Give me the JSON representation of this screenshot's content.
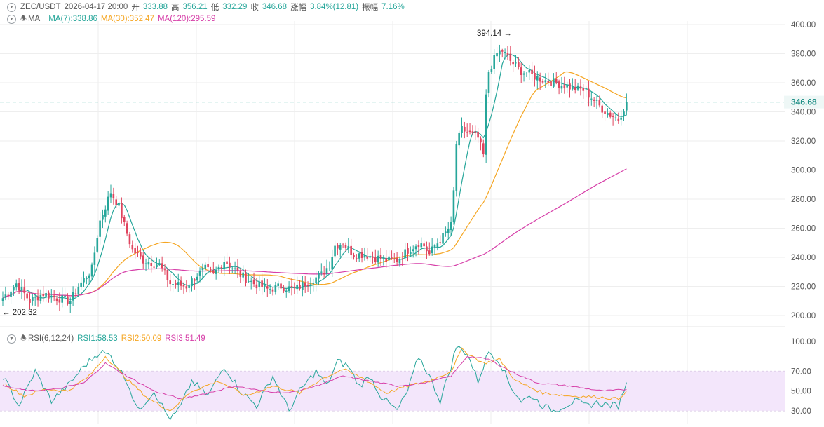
{
  "header": {
    "symbol": "ZEC/USDT",
    "datetime": "2026-04-17 20:00",
    "open_label": "开",
    "open_value": "333.88",
    "high_label": "高",
    "high_value": "356.21",
    "low_label": "低",
    "low_value": "332.29",
    "close_label": "收",
    "close_value": "346.68",
    "change_label": "涨幅",
    "change_value": "3.84%(12.81)",
    "amplitude_label": "振幅",
    "amplitude_value": "7.16%"
  },
  "ma_legend": {
    "title": "MA",
    "ma7": "MA(7):338.86",
    "ma30": "MA(30):352.47",
    "ma120": "MA(120):295.59"
  },
  "rsi_legend": {
    "title": "RSI(6,12,24)",
    "rsi1": "RSI1:58.53",
    "rsi2": "RSI2:50.09",
    "rsi3": "RSI3:51.49"
  },
  "colors": {
    "up": "#26a69a",
    "down": "#e0445e",
    "ma7": "#26a69a",
    "ma30": "#f5a623",
    "ma120": "#d63ea8",
    "rsi_band": "#f3e6fb",
    "grid": "#eeeeee",
    "price_line": "#26a69a"
  },
  "chart_data": [
    {
      "type": "candlestick",
      "y_axis_ticks": [
        "400.00",
        "380.00",
        "360.00",
        "340.00",
        "320.00",
        "300.00",
        "280.00",
        "260.00",
        "240.00",
        "220.00",
        "200.00"
      ],
      "ylim": [
        200,
        400
      ],
      "current_price_label": "346.68",
      "current_price": 346.68,
      "high_marker": "394.14 →",
      "high_value": 394.14,
      "low_marker": "← 202.32",
      "low_value": 202.32,
      "close_anchors": [
        [
          0,
          212
        ],
        [
          5,
          222
        ],
        [
          10,
          210
        ],
        [
          15,
          215
        ],
        [
          20,
          212
        ],
        [
          25,
          210
        ],
        [
          28,
          220
        ],
        [
          33,
          232
        ],
        [
          35,
          255
        ],
        [
          36,
          265
        ],
        [
          40,
          285
        ],
        [
          43,
          275
        ],
        [
          45,
          262
        ],
        [
          48,
          245
        ],
        [
          52,
          238
        ],
        [
          58,
          235
        ],
        [
          62,
          222
        ],
        [
          68,
          220
        ],
        [
          72,
          228
        ],
        [
          75,
          232
        ],
        [
          78,
          228
        ],
        [
          82,
          238
        ],
        [
          88,
          228
        ],
        [
          93,
          222
        ],
        [
          98,
          218
        ],
        [
          103,
          220
        ],
        [
          108,
          218
        ],
        [
          112,
          222
        ],
        [
          118,
          228
        ],
        [
          121,
          235
        ],
        [
          123,
          248
        ],
        [
          126,
          250
        ],
        [
          130,
          242
        ],
        [
          134,
          242
        ],
        [
          138,
          240
        ],
        [
          142,
          238
        ],
        [
          146,
          238
        ],
        [
          150,
          245
        ],
        [
          154,
          250
        ],
        [
          156,
          248
        ],
        [
          158,
          242
        ],
        [
          160,
          248
        ],
        [
          163,
          254
        ],
        [
          166,
          262
        ],
        [
          167,
          285
        ],
        [
          168,
          318
        ],
        [
          170,
          328
        ],
        [
          173,
          325
        ],
        [
          176,
          322
        ],
        [
          178,
          310
        ],
        [
          179,
          350
        ],
        [
          180,
          368
        ],
        [
          183,
          380
        ],
        [
          185,
          382
        ],
        [
          188,
          375
        ],
        [
          192,
          368
        ],
        [
          196,
          365
        ],
        [
          200,
          362
        ],
        [
          205,
          360
        ],
        [
          208,
          358
        ],
        [
          212,
          356
        ],
        [
          215,
          355
        ],
        [
          218,
          350
        ],
        [
          222,
          342
        ],
        [
          225,
          338
        ],
        [
          228,
          335
        ],
        [
          231,
          346.68
        ]
      ],
      "count": 232
    },
    {
      "type": "line",
      "y_axis_ticks": [
        "100.00",
        "70.00",
        "50.00",
        "30.00"
      ],
      "ylim": [
        20,
        100
      ],
      "band": [
        30,
        70
      ],
      "series": [
        {
          "name": "RSI1",
          "values_note": "",
          "anchors": [
            [
              0,
              65
            ],
            [
              6,
              35
            ],
            [
              12,
              70
            ],
            [
              18,
              40
            ],
            [
              24,
              55
            ],
            [
              30,
              75
            ],
            [
              36,
              90
            ],
            [
              40,
              85
            ],
            [
              46,
              60
            ],
            [
              50,
              30
            ],
            [
              56,
              50
            ],
            [
              62,
              20
            ],
            [
              66,
              35
            ],
            [
              70,
              60
            ],
            [
              76,
              45
            ],
            [
              82,
              75
            ],
            [
              88,
              50
            ],
            [
              94,
              35
            ],
            [
              100,
              65
            ],
            [
              106,
              30
            ],
            [
              110,
              50
            ],
            [
              116,
              70
            ],
            [
              120,
              55
            ],
            [
              124,
              80
            ],
            [
              128,
              75
            ],
            [
              132,
              55
            ],
            [
              136,
              65
            ],
            [
              140,
              45
            ],
            [
              146,
              30
            ],
            [
              150,
              50
            ],
            [
              154,
              85
            ],
            [
              158,
              65
            ],
            [
              162,
              40
            ],
            [
              166,
              75
            ],
            [
              168,
              95
            ],
            [
              172,
              88
            ],
            [
              176,
              60
            ],
            [
              180,
              90
            ],
            [
              184,
              80
            ],
            [
              188,
              55
            ],
            [
              192,
              40
            ],
            [
              196,
              45
            ],
            [
              200,
              35
            ],
            [
              204,
              30
            ],
            [
              208,
              35
            ],
            [
              212,
              40
            ],
            [
              216,
              35
            ],
            [
              220,
              38
            ],
            [
              224,
              36
            ],
            [
              228,
              35
            ],
            [
              231,
              58.53
            ]
          ]
        },
        {
          "name": "RSI2",
          "anchors": [
            [
              0,
              58
            ],
            [
              8,
              45
            ],
            [
              16,
              52
            ],
            [
              24,
              50
            ],
            [
              32,
              65
            ],
            [
              38,
              85
            ],
            [
              46,
              62
            ],
            [
              54,
              42
            ],
            [
              62,
              30
            ],
            [
              70,
              50
            ],
            [
              80,
              60
            ],
            [
              90,
              45
            ],
            [
              100,
              55
            ],
            [
              110,
              48
            ],
            [
              118,
              62
            ],
            [
              126,
              72
            ],
            [
              134,
              62
            ],
            [
              142,
              48
            ],
            [
              150,
              55
            ],
            [
              158,
              60
            ],
            [
              166,
              70
            ],
            [
              170,
              92
            ],
            [
              178,
              78
            ],
            [
              184,
              82
            ],
            [
              190,
              60
            ],
            [
              200,
              48
            ],
            [
              210,
              45
            ],
            [
              220,
              44
            ],
            [
              228,
              42
            ],
            [
              231,
              50.09
            ]
          ]
        },
        {
          "name": "RSI3",
          "anchors": [
            [
              0,
              55
            ],
            [
              10,
              50
            ],
            [
              20,
              52
            ],
            [
              30,
              58
            ],
            [
              38,
              78
            ],
            [
              46,
              65
            ],
            [
              56,
              50
            ],
            [
              66,
              42
            ],
            [
              76,
              48
            ],
            [
              86,
              55
            ],
            [
              96,
              50
            ],
            [
              106,
              48
            ],
            [
              116,
              55
            ],
            [
              126,
              65
            ],
            [
              136,
              60
            ],
            [
              146,
              55
            ],
            [
              156,
              58
            ],
            [
              166,
              65
            ],
            [
              172,
              85
            ],
            [
              180,
              82
            ],
            [
              188,
              70
            ],
            [
              198,
              58
            ],
            [
              210,
              55
            ],
            [
              222,
              50
            ],
            [
              231,
              51.49
            ]
          ]
        }
      ]
    }
  ]
}
